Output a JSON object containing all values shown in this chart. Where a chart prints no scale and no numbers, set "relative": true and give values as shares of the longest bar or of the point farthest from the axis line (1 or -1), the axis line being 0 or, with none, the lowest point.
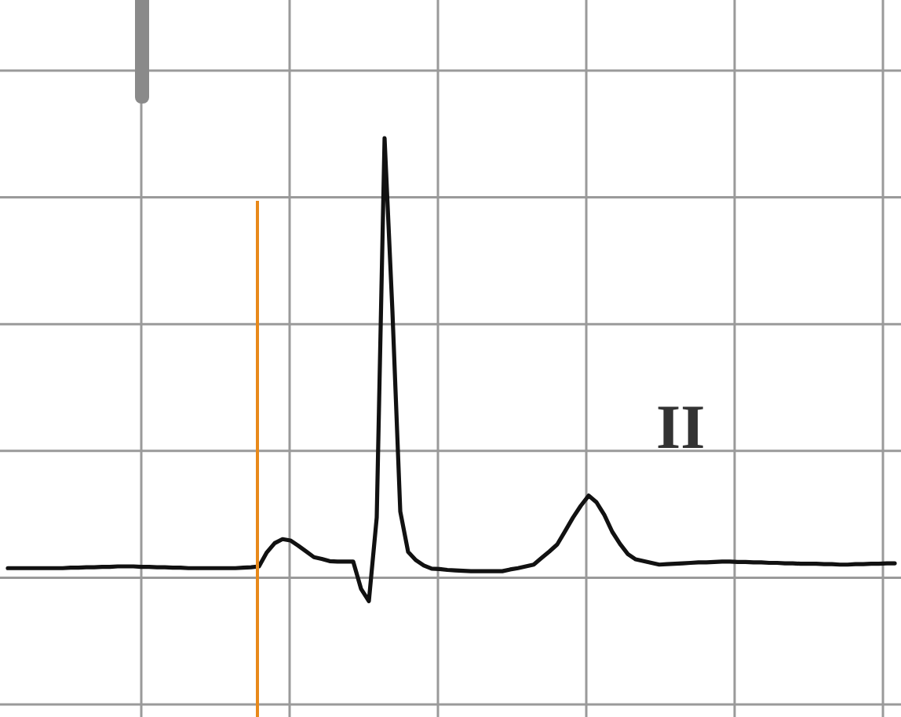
{
  "chart_data": {
    "type": "line",
    "relative": true,
    "tick_labels": false,
    "grid": true,
    "marker": "none",
    "line_style": "solid",
    "annotations": [
      "II"
    ],
    "categories": [
      null,
      null,
      null,
      null,
      null,
      null,
      null,
      null,
      null,
      null,
      null,
      null,
      null,
      null,
      null,
      null,
      null,
      null,
      null,
      null,
      null,
      null,
      null,
      null,
      null,
      null,
      null,
      null,
      null,
      null,
      null,
      null,
      null,
      null,
      null,
      null,
      null,
      null,
      null,
      null,
      null,
      null,
      null,
      null,
      null,
      null,
      null,
      null,
      null,
      null,
      null,
      null,
      null,
      null,
      null,
      null,
      null,
      null,
      null,
      null,
      null,
      null,
      null,
      null,
      null,
      null,
      null,
      null,
      null,
      null,
      null,
      null,
      null,
      null,
      null,
      null,
      null,
      null,
      null,
      null,
      null,
      null,
      null,
      null,
      null,
      null,
      null,
      null,
      null,
      null,
      null,
      null,
      null,
      null,
      null,
      null,
      null,
      null,
      null,
      null,
      null,
      null,
      null,
      null,
      null,
      null,
      null,
      null,
      null,
      null,
      null,
      null,
      null,
      null
    ],
    "series": [
      {
        "color": "#111111",
        "values": [
          0.021,
          0.021,
          0.021,
          0.021,
          0.021,
          0.021,
          0.021,
          0.021,
          0.022,
          0.022,
          0.023,
          0.023,
          0.024,
          0.024,
          0.025,
          0.025,
          0.025,
          0.024,
          0.024,
          0.023,
          0.023,
          0.022,
          0.022,
          0.021,
          0.021,
          0.021,
          0.021,
          0.021,
          0.021,
          0.021,
          0.022,
          0.023,
          0.025,
          0.057,
          0.078,
          0.087,
          0.084,
          0.072,
          0.059,
          0.046,
          0.042,
          0.037,
          0.036,
          0.036,
          0.036,
          -0.026,
          -0.054,
          0.136,
          1,
          0.606,
          0.15,
          0.058,
          0.039,
          0.027,
          0.02,
          0.019,
          0.017,
          0.016,
          0.015,
          0.014,
          0.014,
          0.014,
          0.014,
          0.014,
          0.018,
          0.021,
          0.025,
          0.029,
          0.044,
          0.059,
          0.075,
          0.105,
          0.136,
          0.163,
          0.186,
          0.171,
          0.142,
          0.104,
          0.076,
          0.053,
          0.041,
          0.037,
          0.033,
          0.029,
          0.03,
          0.031,
          0.032,
          0.033,
          0.034,
          0.034,
          0.035,
          0.036,
          0.036,
          0.035,
          0.035,
          0.034,
          0.034,
          0.033,
          0.033,
          0.032,
          0.032,
          0.031,
          0.031,
          0.031,
          0.03,
          0.03,
          0.029,
          0.029,
          0.03,
          0.03,
          0.031,
          0.031,
          0.032,
          0.032
        ]
      }
    ]
  }
}
